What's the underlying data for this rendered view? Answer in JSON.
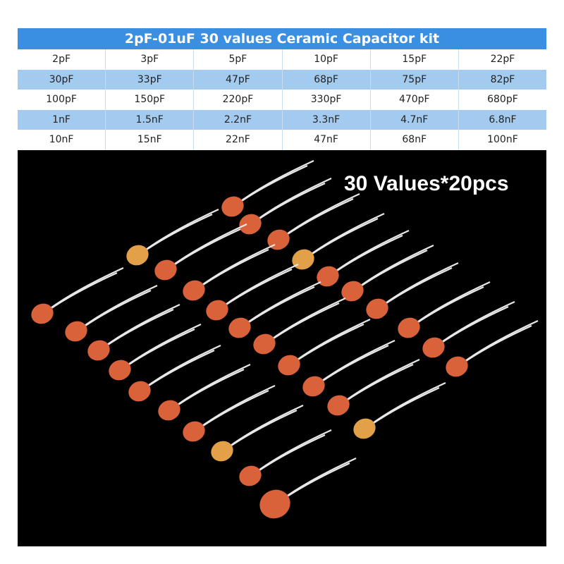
{
  "header": {
    "title": "2pF-01uF 30 values Ceramic Capacitor kit"
  },
  "table": {
    "rows": [
      [
        "2pF",
        "3pF",
        "5pF",
        "10pF",
        "15pF",
        "22pF"
      ],
      [
        "30pF",
        "33pF",
        "47pF",
        "68pF",
        "75pF",
        "82pF"
      ],
      [
        "100pF",
        "150pF",
        "220pF",
        "330pF",
        "470pF",
        "680pF"
      ],
      [
        "1nF",
        "1.5nF",
        "2.2nF",
        "3.3nF",
        "4.7nF",
        "6.8nF"
      ],
      [
        "10nF",
        "15nF",
        "22nF",
        "47nF",
        "68nF",
        "100nF"
      ]
    ]
  },
  "photo": {
    "caption": "30 Values*20pcs"
  }
}
